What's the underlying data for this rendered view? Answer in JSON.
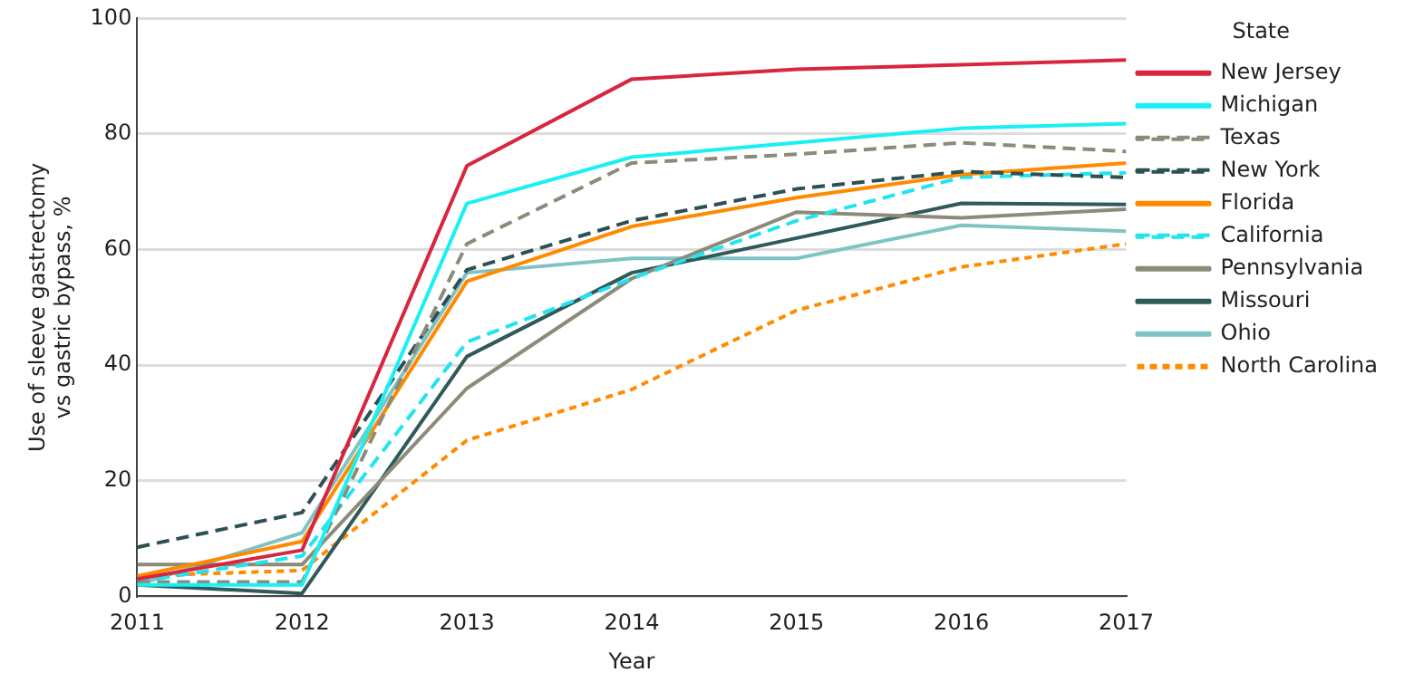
{
  "chart_data": {
    "type": "line",
    "xlabel": "Year",
    "ylabel": "Use of sleeve gastrectomy vs gastric bypass, %",
    "legend_title": "State",
    "legend": "right",
    "grid": "y",
    "marker": "none",
    "x": [
      2011,
      2012,
      2013,
      2014,
      2015,
      2016,
      2017
    ],
    "xlim": [
      2011,
      2017
    ],
    "xticks": [
      2011,
      2012,
      2013,
      2014,
      2015,
      2016,
      2017
    ],
    "ylim": [
      0,
      100
    ],
    "yticks": [
      0,
      20,
      40,
      60,
      80,
      100
    ],
    "series": [
      {
        "name": "New Jersey",
        "color": "#d7263d",
        "line_style": "solid",
        "values": [
          3,
          8,
          74.5,
          89.5,
          91.2,
          92,
          92.8
        ]
      },
      {
        "name": "Michigan",
        "color": "#19f0f5",
        "line_style": "solid",
        "values": [
          2,
          2,
          68,
          76,
          78.5,
          81,
          81.8
        ]
      },
      {
        "name": "Texas",
        "color": "#8c8a78",
        "line_style": "dashed",
        "values": [
          2.5,
          2.5,
          61,
          75,
          76.5,
          78.5,
          77
        ]
      },
      {
        "name": "New York",
        "color": "#2c5055",
        "line_style": "dashed",
        "values": [
          8.5,
          14.5,
          56.5,
          65,
          70.5,
          73.5,
          72.5
        ]
      },
      {
        "name": "Florida",
        "color": "#ff8a00",
        "line_style": "solid",
        "values": [
          3.5,
          9.5,
          54.5,
          64,
          69,
          73,
          75
        ]
      },
      {
        "name": "California",
        "color": "#20e4f0",
        "line_style": "dashed",
        "values": [
          2.5,
          7,
          44,
          55,
          65,
          72.5,
          73.3
        ]
      },
      {
        "name": "Pennsylvania",
        "color": "#8c8a78",
        "line_style": "solid",
        "values": [
          5.5,
          5.5,
          36,
          55,
          66.5,
          65.5,
          67
        ]
      },
      {
        "name": "Missouri",
        "color": "#2e5a5a",
        "line_style": "solid",
        "values": [
          2,
          0.5,
          41.5,
          56,
          62,
          68,
          67.8
        ]
      },
      {
        "name": "Ohio",
        "color": "#7fc3c3",
        "line_style": "solid",
        "values": [
          2,
          11,
          56,
          58.5,
          58.5,
          64.2,
          63.2
        ]
      },
      {
        "name": "North Carolina",
        "color": "#ff8c00",
        "line_style": "dotted",
        "values": [
          3.5,
          4.5,
          27,
          35.8,
          49.5,
          57,
          61
        ]
      }
    ]
  }
}
